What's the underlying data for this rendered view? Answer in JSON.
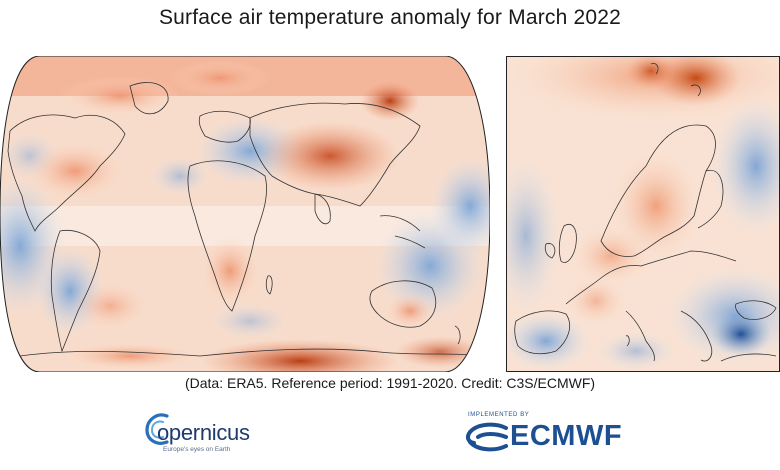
{
  "title": "Surface air temperature anomaly for March 2022",
  "credit": "(Data: ERA5.  Reference period: 1991-2020.  Credit: C3S/ECMWF)",
  "maps": [
    {
      "region": "World",
      "projection": "Robinson",
      "color_scale": "diverging blue-red"
    },
    {
      "region": "Europe",
      "color_scale": "diverging blue-red"
    }
  ],
  "colors": {
    "warm_strong": "#c1440e",
    "warm": "#f2a07b",
    "warm_light": "#fbd9c4",
    "neutral": "#f7f1ec",
    "cool_light": "#dbe7f4",
    "cool": "#8fb2da",
    "cool_strong": "#2b61a8",
    "coastline": "#333333"
  },
  "logos": {
    "copernicus": {
      "word": "opernicus",
      "tagline": "Europe's eyes on Earth"
    },
    "ecmwf": {
      "implemented_by": "IMPLEMENTED BY",
      "word": "ECMWF"
    }
  }
}
